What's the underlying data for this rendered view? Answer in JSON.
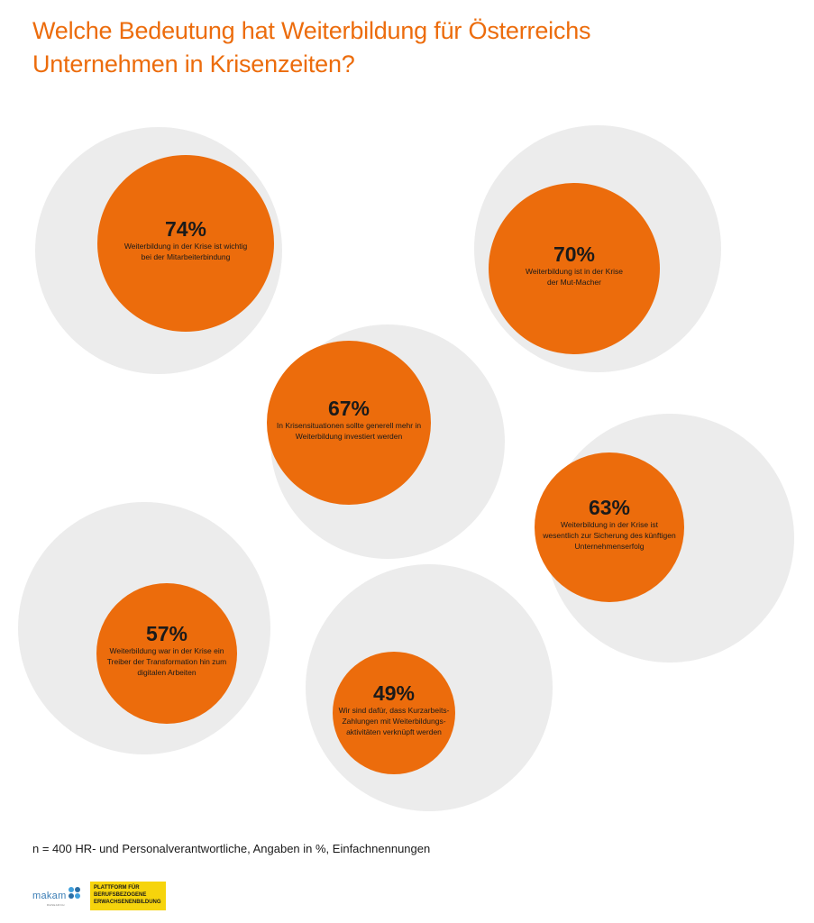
{
  "title": {
    "line1": "Welche Bedeutung hat Weiterbildung für Österreichs",
    "line2": "Unternehmen in Krisenzeiten?"
  },
  "colors": {
    "accent": "#ec6c0c",
    "background_circle": "#ececec",
    "text_dark": "#1a1a1a"
  },
  "chart_data": {
    "type": "bubble",
    "unit": "%",
    "max_value": 100,
    "items": [
      {
        "value": 74,
        "label_pct": "74%",
        "text": [
          "Weiterbildung in der Krise ist wichtig",
          "bei der Mitarbeiterbindung"
        ]
      },
      {
        "value": 70,
        "label_pct": "70%",
        "text": [
          "Weiterbildung ist in der Krise",
          "der Mut-Macher"
        ]
      },
      {
        "value": 67,
        "label_pct": "67%",
        "text": [
          "In Krisensituationen sollte generell mehr in",
          "Weiterbildung investiert werden"
        ]
      },
      {
        "value": 63,
        "label_pct": "63%",
        "text": [
          "Weiterbildung in der Krise ist",
          "wesentlich zur Sicherung des künftigen",
          "Unternehmenserfolg"
        ]
      },
      {
        "value": 57,
        "label_pct": "57%",
        "text": [
          "Weiterbildung war in der Krise ein",
          "Treiber der Transformation hin zum",
          "digitalen Arbeiten"
        ]
      },
      {
        "value": 49,
        "label_pct": "49%",
        "text": [
          "Wir sind dafür, dass Kurzarbeits-",
          "Zahlungen mit Weiterbildungs-",
          "aktivitäten verknüpft werden"
        ]
      }
    ]
  },
  "footnote": "n = 400 HR- und Personalverantwortliche, Angaben in %, Einfachnennungen",
  "logos": {
    "makam": "makam",
    "makam_sub": "RESEARCH",
    "platform_lines": [
      "PLATTFORM FÜR",
      "BERUFSBEZOGENE",
      "ERWACHSENENBILDUNG"
    ]
  }
}
